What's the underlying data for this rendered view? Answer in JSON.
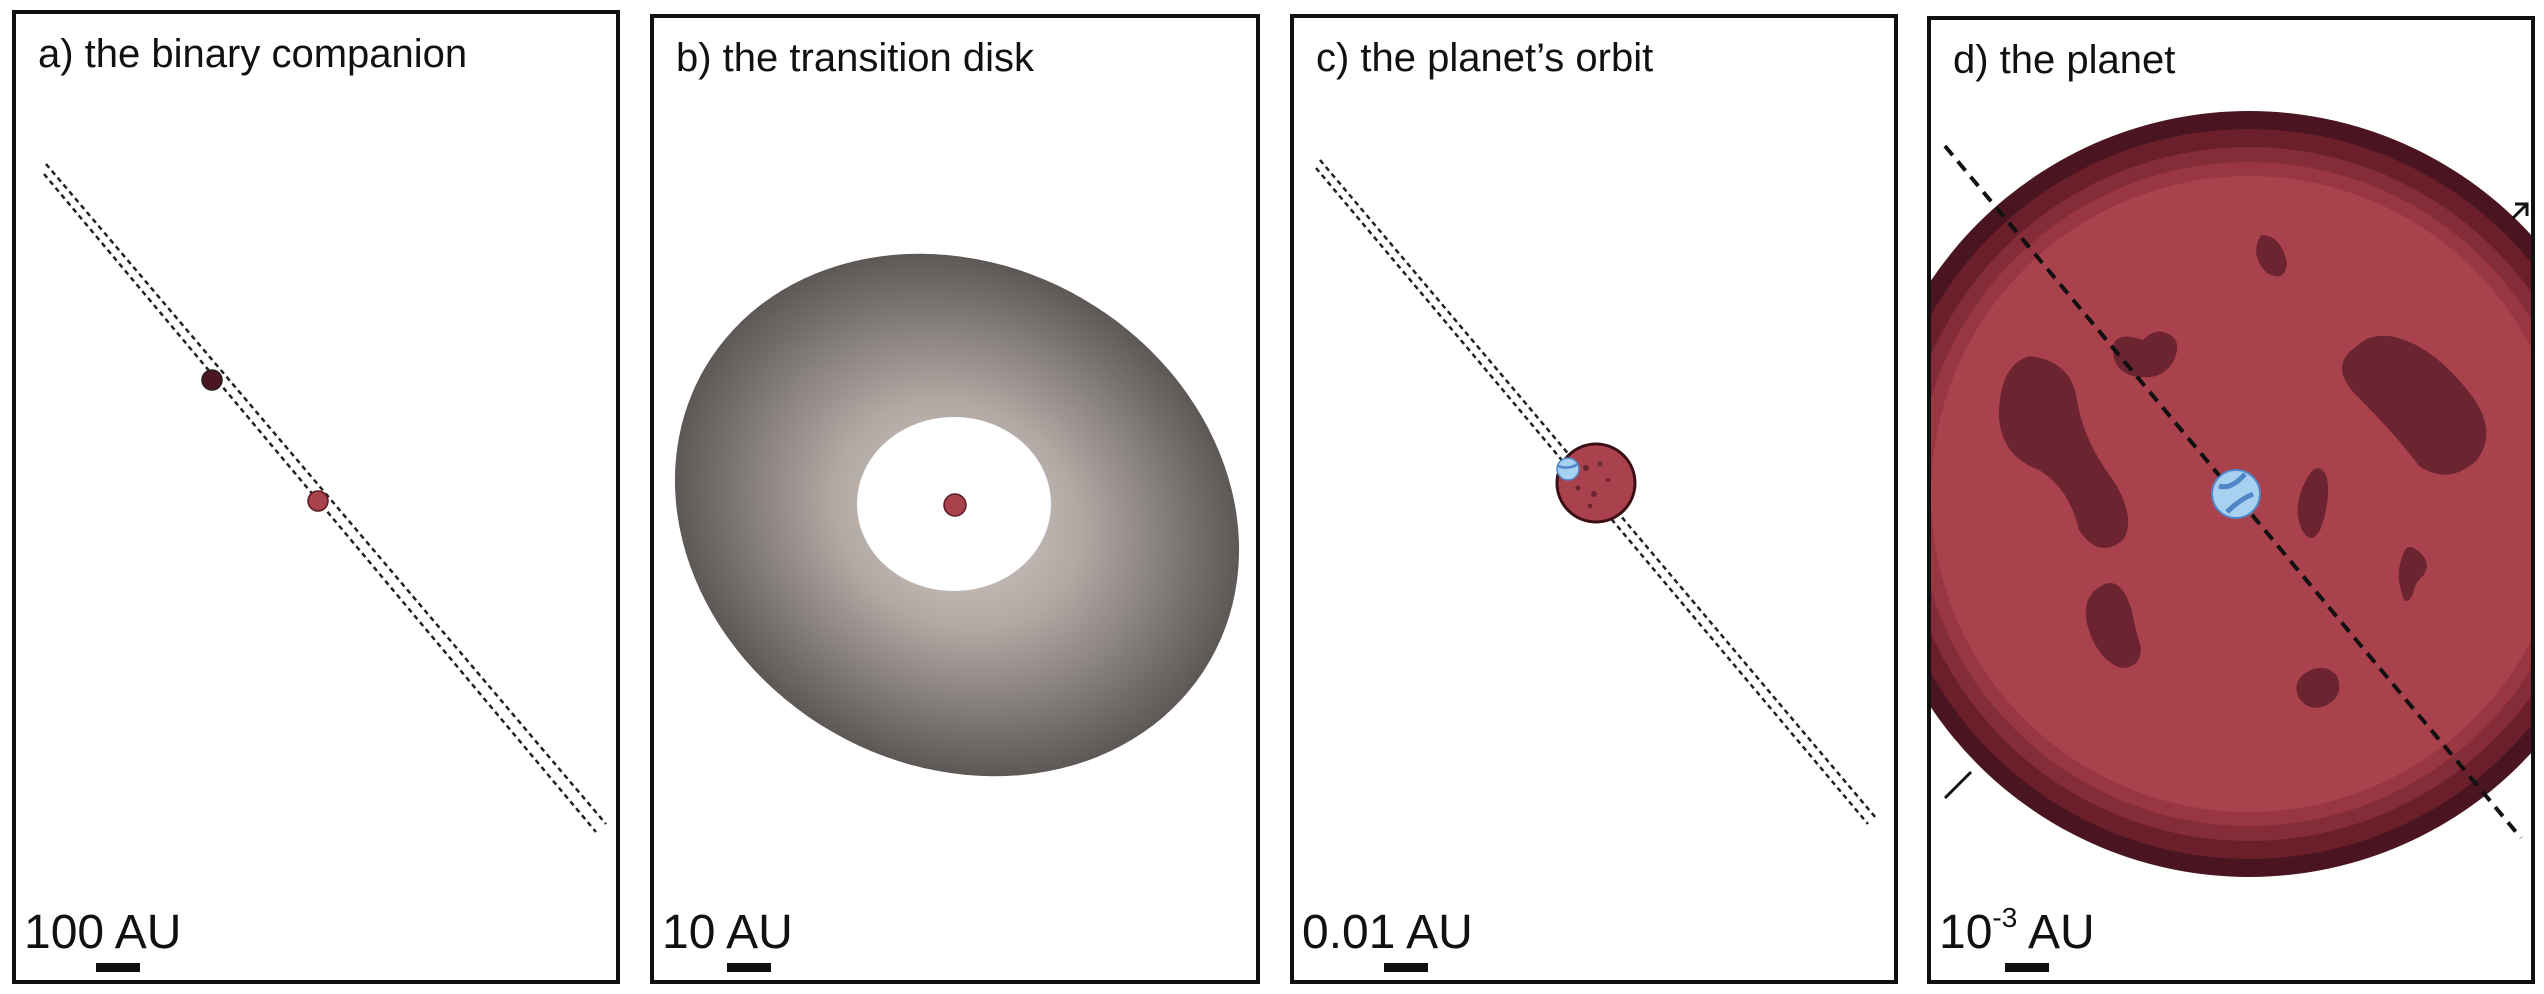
{
  "panels": {
    "a": {
      "title": "a) the binary companion",
      "scale_label": "100 AU"
    },
    "b": {
      "title": "b) the transition disk",
      "scale_label": "10 AU"
    },
    "c": {
      "title": "c) the planet’s orbit",
      "scale_label": "0.01 AU"
    },
    "d": {
      "title": "d) the planet",
      "scale_base": "10",
      "scale_exp": "-3",
      "scale_unit": " AU"
    }
  },
  "colors": {
    "planet_red": "#a9424d",
    "planet_dark": "#4a1520",
    "spot_dark": "#6b2430",
    "moon_blue": "#a8d0f0",
    "moon_stripe": "#4f86c8",
    "disk_inner": "#c9bfb9",
    "disk_outer": "#4f4b48"
  }
}
